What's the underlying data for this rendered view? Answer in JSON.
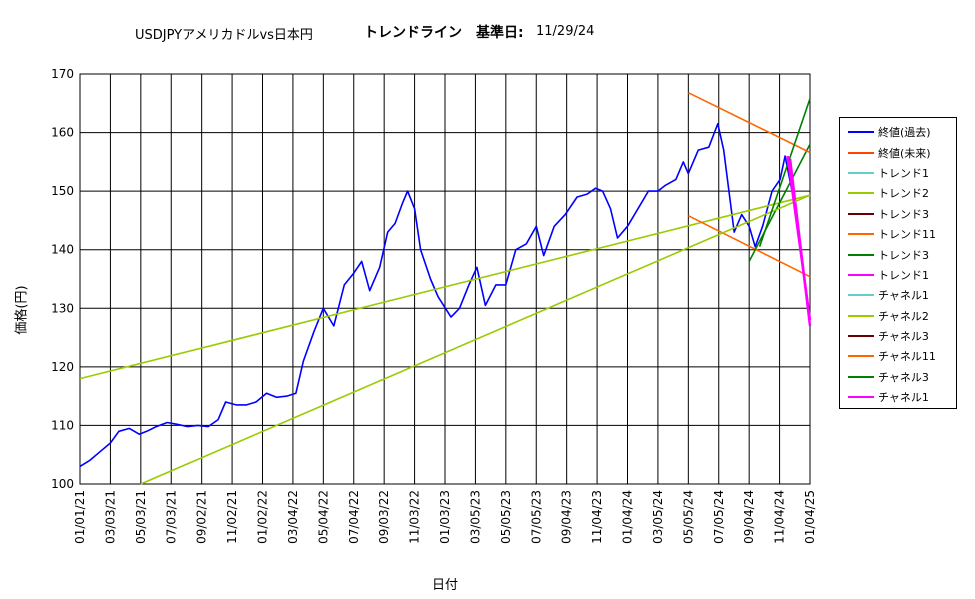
{
  "header": {
    "pair": "USDJPYアメリカドルvs日本円",
    "subtitle": "トレンドライン　基準日:",
    "date": "11/29/24"
  },
  "chart_data": {
    "type": "line",
    "ylabel": "価格(円)",
    "xlabel": "日付",
    "ylim": [
      100,
      170
    ],
    "yticks": [
      100,
      110,
      120,
      130,
      140,
      150,
      160,
      170
    ],
    "xticks": [
      "01/01/21",
      "03/03/21",
      "05/03/21",
      "07/03/21",
      "09/02/21",
      "11/02/21",
      "01/02/22",
      "03/04/22",
      "05/04/22",
      "07/04/22",
      "09/03/22",
      "11/03/22",
      "01/03/23",
      "03/05/23",
      "05/05/23",
      "07/05/23",
      "09/04/23",
      "11/04/23",
      "01/04/24",
      "03/05/24",
      "05/05/24",
      "07/05/24",
      "09/04/24",
      "11/04/24",
      "01/04/25"
    ],
    "grid": true,
    "legend_position": "right",
    "series": [
      {
        "name": "終値(過去)",
        "color": "#0000ff",
        "points": [
          [
            "01/01/21",
            103
          ],
          [
            "01/20/21",
            104
          ],
          [
            "02/10/21",
            105.5
          ],
          [
            "03/03/21",
            107
          ],
          [
            "03/20/21",
            109
          ],
          [
            "04/10/21",
            109.5
          ],
          [
            "04/30/21",
            108.5
          ],
          [
            "05/15/21",
            109
          ],
          [
            "06/03/21",
            109.8
          ],
          [
            "06/25/21",
            110.5
          ],
          [
            "07/15/21",
            110.2
          ],
          [
            "08/05/21",
            109.8
          ],
          [
            "08/25/21",
            110
          ],
          [
            "09/15/21",
            109.8
          ],
          [
            "10/05/21",
            111
          ],
          [
            "10/20/21",
            114
          ],
          [
            "11/10/21",
            113.5
          ],
          [
            "12/01/21",
            113.5
          ],
          [
            "12/20/21",
            114
          ],
          [
            "01/10/22",
            115.5
          ],
          [
            "01/30/22",
            114.8
          ],
          [
            "02/20/22",
            115
          ],
          [
            "03/10/22",
            115.5
          ],
          [
            "03/25/22",
            121
          ],
          [
            "04/15/22",
            126
          ],
          [
            "05/04/22",
            130
          ],
          [
            "05/25/22",
            127
          ],
          [
            "06/15/22",
            134
          ],
          [
            "07/04/22",
            136
          ],
          [
            "07/20/22",
            138
          ],
          [
            "08/05/22",
            133
          ],
          [
            "08/25/22",
            137
          ],
          [
            "09/10/22",
            143
          ],
          [
            "09/25/22",
            144.5
          ],
          [
            "10/10/22",
            148
          ],
          [
            "10/20/22",
            150
          ],
          [
            "11/03/22",
            147
          ],
          [
            "11/15/22",
            140
          ],
          [
            "12/05/22",
            135
          ],
          [
            "12/20/22",
            132
          ],
          [
            "01/15/23",
            128.5
          ],
          [
            "02/01/23",
            130
          ],
          [
            "02/20/23",
            134
          ],
          [
            "03/08/23",
            137
          ],
          [
            "03/25/23",
            130.5
          ],
          [
            "04/15/23",
            134
          ],
          [
            "05/05/23",
            134
          ],
          [
            "05/25/23",
            140
          ],
          [
            "06/15/23",
            141
          ],
          [
            "07/05/23",
            144
          ],
          [
            "07/20/23",
            139
          ],
          [
            "08/10/23",
            144
          ],
          [
            "09/01/23",
            146
          ],
          [
            "09/25/23",
            149
          ],
          [
            "10/15/23",
            149.5
          ],
          [
            "11/01/23",
            150.5
          ],
          [
            "11/15/23",
            150
          ],
          [
            "12/01/23",
            147
          ],
          [
            "12/15/23",
            142
          ],
          [
            "01/04/24",
            144
          ],
          [
            "01/25/24",
            147
          ],
          [
            "02/15/24",
            150
          ],
          [
            "03/05/24",
            150
          ],
          [
            "03/20/24",
            151
          ],
          [
            "04/10/24",
            152
          ],
          [
            "04/25/24",
            155
          ],
          [
            "05/05/24",
            153
          ],
          [
            "05/25/24",
            157
          ],
          [
            "06/15/24",
            157.5
          ],
          [
            "07/03/24",
            161.5
          ],
          [
            "07/15/24",
            157
          ],
          [
            "08/05/24",
            143
          ],
          [
            "08/20/24",
            146
          ],
          [
            "09/04/24",
            144
          ],
          [
            "09/16/24",
            140.5
          ],
          [
            "10/01/24",
            144
          ],
          [
            "10/20/24",
            150
          ],
          [
            "11/05/24",
            152
          ],
          [
            "11/15/24",
            156
          ],
          [
            "11/29/24",
            150
          ]
        ]
      },
      {
        "name": "終値(未来)",
        "color": "#ff4500",
        "points": []
      },
      {
        "name": "トレンド1",
        "color": "#66cccc",
        "points": []
      },
      {
        "name": "トレンド2",
        "color": "#99cc00",
        "points": [
          [
            "01/01/21",
            118
          ],
          [
            "01/04/25",
            149.3
          ]
        ]
      },
      {
        "name": "トレンド3",
        "color": "#660000",
        "points": []
      },
      {
        "name": "トレンド11",
        "color": "#ff6600",
        "points": [
          [
            "05/05/24",
            145.8
          ],
          [
            "01/04/25",
            135.4
          ]
        ]
      },
      {
        "name": "トレンド3",
        "color": "#008000",
        "points": [
          [
            "09/04/24",
            138
          ],
          [
            "01/04/25",
            158
          ]
        ]
      },
      {
        "name": "トレンド1",
        "color": "#ff00ff",
        "points": [
          [
            "11/25/24",
            155.5
          ],
          [
            "01/04/25",
            127
          ]
        ]
      },
      {
        "name": "チャネル1",
        "color": "#66cccc",
        "points": []
      },
      {
        "name": "チャネル2",
        "color": "#99cc00",
        "points": [
          [
            "05/03/21",
            100
          ],
          [
            "01/04/25",
            149.3
          ]
        ]
      },
      {
        "name": "チャネル3",
        "color": "#660000",
        "points": []
      },
      {
        "name": "チャネル11",
        "color": "#ff6600",
        "points": [
          [
            "05/05/24",
            166.8
          ],
          [
            "01/04/25",
            156.6
          ]
        ]
      },
      {
        "name": "チャネル3",
        "color": "#008000",
        "points": [
          [
            "09/25/24",
            140.5
          ],
          [
            "01/04/25",
            165.8
          ]
        ]
      },
      {
        "name": "チャネル1",
        "color": "#ff00ff",
        "points": [
          [
            "11/20/24",
            156
          ],
          [
            "01/04/25",
            128
          ]
        ]
      }
    ]
  }
}
